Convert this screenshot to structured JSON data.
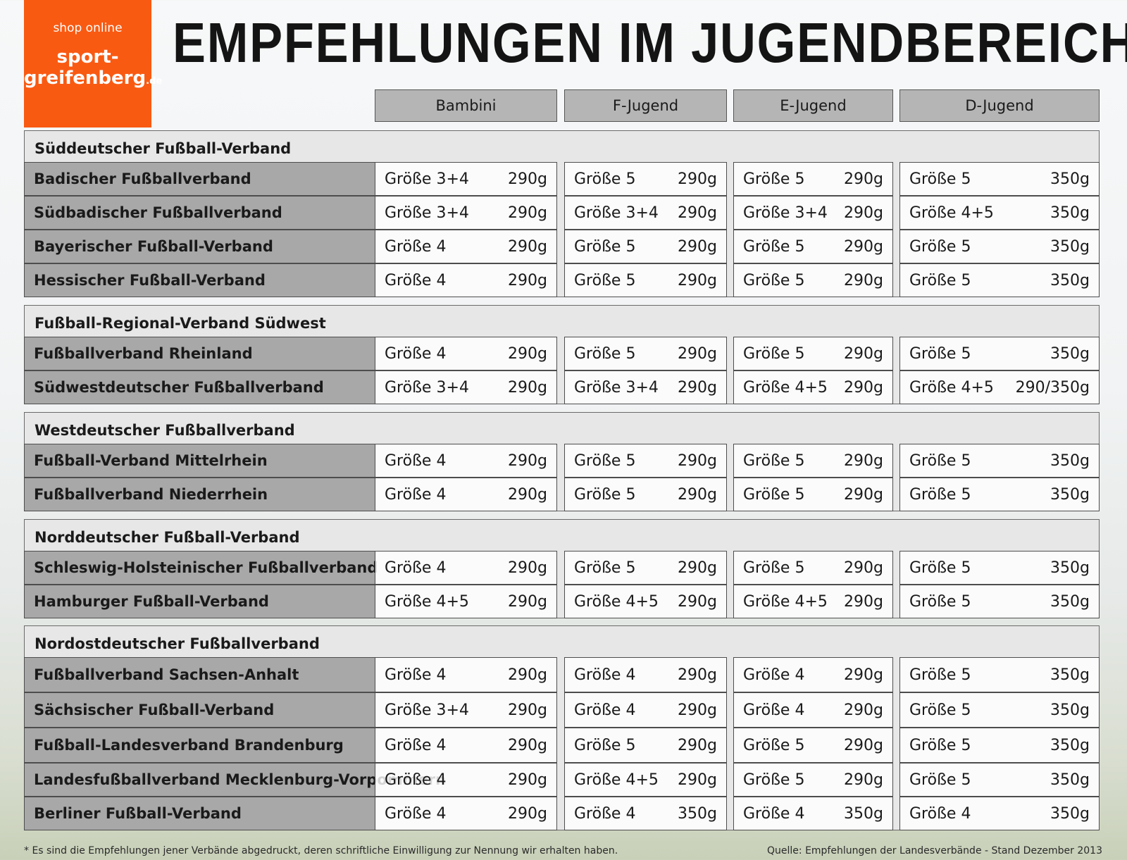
{
  "logo": {
    "shop": "shop online",
    "brand_line1": "sport-",
    "brand_line2": "greifenberg",
    "brand_tld": ".de"
  },
  "title": "EMPFEHLUNGEN IM JUGENDBEREICH",
  "title_mark": "*",
  "columns": [
    "Bambini",
    "F-Jugend",
    "E-Jugend",
    "D-Jugend"
  ],
  "groups": [
    {
      "name": "Süddeutscher Fußball-Verband",
      "rows": [
        {
          "name": "Badischer Fußballverband",
          "cells": [
            [
              "Größe 3+4",
              "290g"
            ],
            [
              "Größe 5",
              "290g"
            ],
            [
              "Größe 5",
              "290g"
            ],
            [
              "Größe 5",
              "350g"
            ]
          ]
        },
        {
          "name": "Südbadischer Fußballverband",
          "cells": [
            [
              "Größe 3+4",
              "290g"
            ],
            [
              "Größe 3+4",
              "290g"
            ],
            [
              "Größe 3+4",
              "290g"
            ],
            [
              "Größe 4+5",
              "350g"
            ]
          ]
        },
        {
          "name": "Bayerischer Fußball-Verband",
          "cells": [
            [
              "Größe 4",
              "290g"
            ],
            [
              "Größe 5",
              "290g"
            ],
            [
              "Größe 5",
              "290g"
            ],
            [
              "Größe 5",
              "350g"
            ]
          ]
        },
        {
          "name": "Hessischer Fußball-Verband",
          "cells": [
            [
              "Größe 4",
              "290g"
            ],
            [
              "Größe 5",
              "290g"
            ],
            [
              "Größe 5",
              "290g"
            ],
            [
              "Größe 5",
              "350g"
            ]
          ]
        }
      ]
    },
    {
      "name": "Fußball-Regional-Verband Südwest",
      "rows": [
        {
          "name": "Fußballverband Rheinland",
          "cells": [
            [
              "Größe 4",
              "290g"
            ],
            [
              "Größe 5",
              "290g"
            ],
            [
              "Größe 5",
              "290g"
            ],
            [
              "Größe 5",
              "350g"
            ]
          ]
        },
        {
          "name": "Südwestdeutscher Fußballverband",
          "cells": [
            [
              "Größe 3+4",
              "290g"
            ],
            [
              "Größe 3+4",
              "290g"
            ],
            [
              "Größe 4+5",
              "290g"
            ],
            [
              "Größe 4+5",
              "290/350g"
            ]
          ]
        }
      ]
    },
    {
      "name": "Westdeutscher Fußballverband",
      "rows": [
        {
          "name": "Fußball-Verband Mittelrhein",
          "cells": [
            [
              "Größe 4",
              "290g"
            ],
            [
              "Größe 5",
              "290g"
            ],
            [
              "Größe 5",
              "290g"
            ],
            [
              "Größe 5",
              "350g"
            ]
          ]
        },
        {
          "name": "Fußballverband Niederrhein",
          "cells": [
            [
              "Größe 4",
              "290g"
            ],
            [
              "Größe 5",
              "290g"
            ],
            [
              "Größe 5",
              "290g"
            ],
            [
              "Größe 5",
              "350g"
            ]
          ]
        }
      ]
    },
    {
      "name": "Norddeutscher Fußball-Verband",
      "rows": [
        {
          "name": "Schleswig-Holsteinischer Fußballverband",
          "cells": [
            [
              "Größe 4",
              "290g"
            ],
            [
              "Größe 5",
              "290g"
            ],
            [
              "Größe 5",
              "290g"
            ],
            [
              "Größe 5",
              "350g"
            ]
          ]
        },
        {
          "name": "Hamburger Fußball-Verband",
          "cells": [
            [
              "Größe 4+5",
              "290g"
            ],
            [
              "Größe 4+5",
              "290g"
            ],
            [
              "Größe 4+5",
              "290g"
            ],
            [
              "Größe 5",
              "350g"
            ]
          ]
        }
      ]
    },
    {
      "name": "Nordostdeutscher Fußballverband",
      "rows": [
        {
          "name": "Fußballverband Sachsen-Anhalt",
          "cells": [
            [
              "Größe 4",
              "290g"
            ],
            [
              "Größe 4",
              "290g"
            ],
            [
              "Größe 4",
              "290g"
            ],
            [
              "Größe 5",
              "350g"
            ]
          ]
        },
        {
          "name": "Sächsischer Fußball-Verband",
          "cells": [
            [
              "Größe 3+4",
              "290g"
            ],
            [
              "Größe 4",
              "290g"
            ],
            [
              "Größe 4",
              "290g"
            ],
            [
              "Größe 5",
              "350g"
            ]
          ]
        },
        {
          "name": "Fußball-Landesverband Brandenburg",
          "cells": [
            [
              "Größe 4",
              "290g"
            ],
            [
              "Größe 5",
              "290g"
            ],
            [
              "Größe 5",
              "290g"
            ],
            [
              "Größe 5",
              "350g"
            ]
          ]
        },
        {
          "name": "Landesfußballverband Mecklenburg-Vorpommern",
          "cells": [
            [
              "Größe 4",
              "290g"
            ],
            [
              "Größe 4+5",
              "290g"
            ],
            [
              "Größe 5",
              "290g"
            ],
            [
              "Größe 5",
              "350g"
            ]
          ]
        },
        {
          "name": "Berliner Fußball-Verband",
          "cells": [
            [
              "Größe 4",
              "290g"
            ],
            [
              "Größe 4",
              "350g"
            ],
            [
              "Größe 4",
              "350g"
            ],
            [
              "Größe 4",
              "350g"
            ]
          ]
        }
      ]
    }
  ],
  "footnote": "* Es sind die Empfehlungen jener Verbände abgedruckt, deren schriftliche Einwilligung zur Nennung wir erhalten haben.",
  "source": "Quelle: Empfehlungen der Landesverbände - Stand Dezember 2013"
}
